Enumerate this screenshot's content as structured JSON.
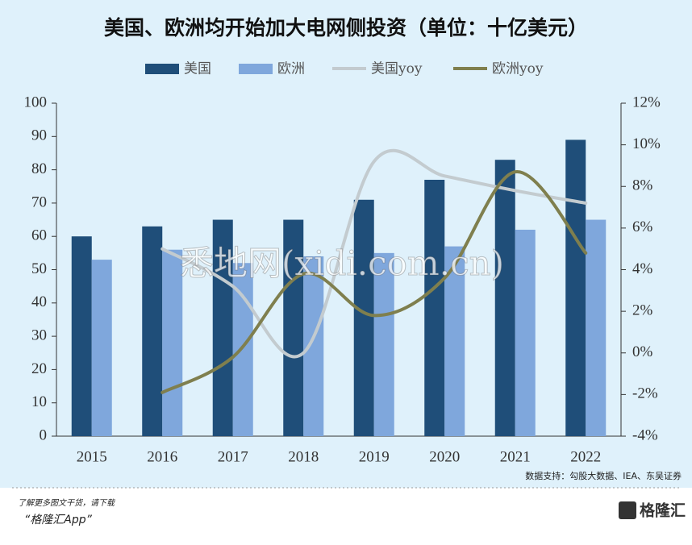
{
  "chart_data": {
    "type": "bar_line",
    "title": "美国、欧洲均开始加大电网侧投资（单位：十亿美元）",
    "categories": [
      "2015",
      "2016",
      "2017",
      "2018",
      "2019",
      "2020",
      "2021",
      "2022"
    ],
    "series": [
      {
        "name": "美国",
        "kind": "bar",
        "color": "#1f4e79",
        "values": [
          60,
          63,
          65,
          65,
          71,
          77,
          83,
          89
        ]
      },
      {
        "name": "欧洲",
        "kind": "bar",
        "color": "#7fa7dc",
        "values": [
          53,
          56,
          52,
          54,
          55,
          57,
          62,
          65
        ]
      },
      {
        "name": "美国yoy",
        "kind": "line",
        "axis": "y2",
        "color": "#c3cbcf",
        "values": [
          null,
          5,
          3.2,
          0,
          9.2,
          8.5,
          7.8,
          7.2
        ]
      },
      {
        "name": "欧洲yoy",
        "kind": "line",
        "axis": "y2",
        "color": "#7f7f4e",
        "values": [
          null,
          -1.9,
          -0.2,
          3.8,
          1.8,
          3.6,
          8.7,
          4.8
        ]
      }
    ],
    "ylim": [
      0,
      100
    ],
    "yticks": [
      0,
      10,
      20,
      30,
      40,
      50,
      60,
      70,
      80,
      90,
      100
    ],
    "y2lim": [
      -4,
      12
    ],
    "y2ticks": [
      {
        "value": -4,
        "label": "-4%"
      },
      {
        "value": -2,
        "label": "-2%"
      },
      {
        "value": 0,
        "label": "0%"
      },
      {
        "value": 2,
        "label": "2%"
      },
      {
        "value": 4,
        "label": "4%"
      },
      {
        "value": 6,
        "label": "6%"
      },
      {
        "value": 8,
        "label": "8%"
      },
      {
        "value": 10,
        "label": "10%"
      },
      {
        "value": 12,
        "label": "12%"
      }
    ],
    "source": "数据支持：勾股大数据、IEA、东吴证券",
    "watermark": "悉地网(xidi.com.cn)"
  },
  "footer": {
    "line1": "了解更多图文干货，请下载",
    "line2": "“格隆汇App”",
    "logo": "格隆汇"
  }
}
